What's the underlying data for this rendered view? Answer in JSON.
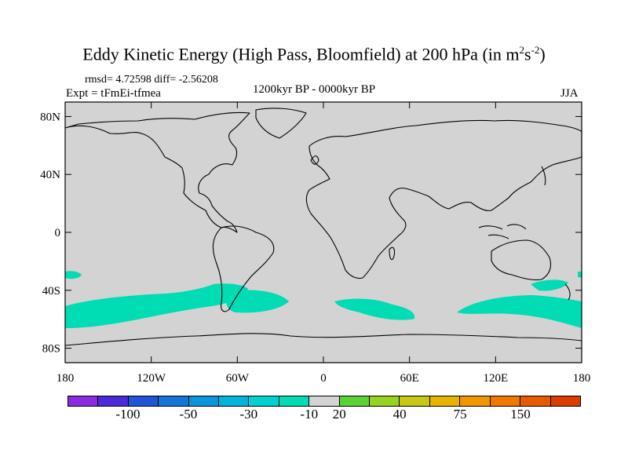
{
  "title": {
    "main": "Eddy Kinetic Energy (High Pass, Bloomfield) at 200 hPa (in m",
    "sup1": "2",
    "mid": "s",
    "sup2": "-2",
    "close": ")"
  },
  "stats": {
    "rmsd": "rmsd= 4.72598 diff= -2.56208",
    "experiment": "Expt = tFmEi-tfmea",
    "period": "1200kyr BP - 0000kyr BP",
    "season": "JJA"
  },
  "axes": {
    "lat_ticks": [
      "80N",
      "40N",
      "0",
      "40S",
      "80S"
    ],
    "lat_values": [
      80,
      40,
      0,
      -40,
      -80
    ],
    "lon_ticks": [
      "180",
      "120W",
      "60W",
      "0",
      "60E",
      "120E",
      "180"
    ],
    "lon_values": [
      -180,
      -120,
      -60,
      0,
      60,
      120,
      180
    ]
  },
  "colors": {
    "land_ocean_fill": "#d3d3d3",
    "anomaly_fill": "#00dcb4",
    "coastline": "#000000"
  },
  "colorbar": {
    "colors": [
      "#8a2be2",
      "#4b2bd9",
      "#1e56d6",
      "#1475d9",
      "#0a94dc",
      "#00b4dc",
      "#00d2d2",
      "#00dcb4",
      "#d3d3d3",
      "#5ad232",
      "#96d21e",
      "#c8c814",
      "#e6b400",
      "#f09600",
      "#f07800",
      "#e65a00",
      "#dc3c00"
    ],
    "labels": [
      "-100",
      "-50",
      "-30",
      "-10",
      "20",
      "40",
      "75",
      "150"
    ]
  }
}
